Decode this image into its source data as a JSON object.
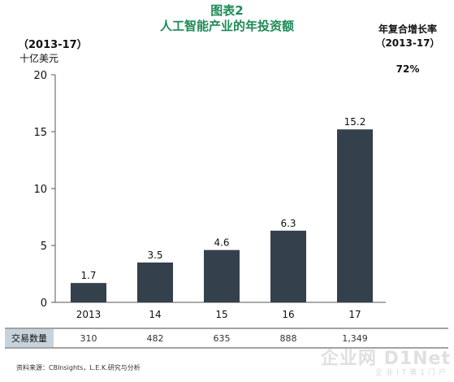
{
  "header": {
    "fig_label": "图表2",
    "title": "人工智能产业的年投资额"
  },
  "period_label": "（2013-17）",
  "cagr": {
    "label_line1": "年复合增长率",
    "label_line2": "（2013-17）",
    "value": "72%"
  },
  "table": {
    "row_label": "交易数量",
    "values": [
      "310",
      "482",
      "635",
      "888",
      "1,349"
    ]
  },
  "source": "资料来源：CBInsights，L.E.K.研究与分析",
  "watermark": {
    "main": "企业网 D1Net",
    "sub": "企业IT第1门户"
  },
  "chart_data": {
    "type": "bar",
    "title": "人工智能产业的年投资额",
    "subtitle": "（2013-17）",
    "ylabel": "十亿美元",
    "xlabel": "",
    "categories": [
      "2013",
      "14",
      "15",
      "16",
      "17"
    ],
    "values": [
      1.7,
      3.5,
      4.6,
      6.3,
      15.2
    ],
    "data_labels": [
      "1.7",
      "3.5",
      "4.6",
      "6.3",
      "15.2"
    ],
    "ylim": [
      0,
      20
    ],
    "yticks": [
      0,
      5,
      10,
      15,
      20
    ],
    "grid": false,
    "legend": "none",
    "bar_color": "#34404b"
  }
}
